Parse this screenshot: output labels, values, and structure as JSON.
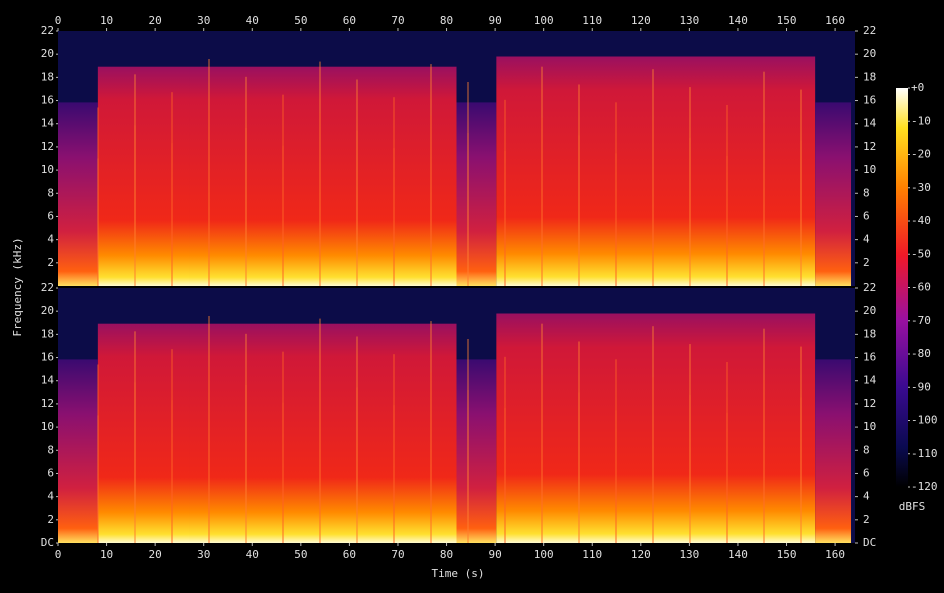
{
  "chart_data": {
    "type": "spectrogram",
    "x_label": "Time (s)",
    "y_label": "Frequency (kHz)",
    "xlim": [
      0,
      164.1
    ],
    "xticks": [
      0,
      10,
      20,
      30,
      40,
      50,
      60,
      70,
      80,
      90,
      100,
      110,
      120,
      130,
      140,
      150,
      160
    ],
    "channels": [
      {
        "ylim": [
          0,
          22
        ],
        "yticks": [
          2,
          4,
          6,
          8,
          10,
          12,
          14,
          16,
          18,
          20,
          22
        ]
      },
      {
        "ylim": [
          0,
          22
        ],
        "yticks": [
          {
            "value": 0,
            "label": "DC"
          },
          2,
          4,
          6,
          8,
          10,
          12,
          14,
          16,
          18,
          20,
          22
        ]
      }
    ],
    "colorbar": {
      "label": "dBFS",
      "lim": [
        -120,
        0
      ],
      "ticks": [
        {
          "value": 0,
          "label": "+0"
        },
        -10,
        -20,
        -30,
        -40,
        -50,
        -60,
        -70,
        -80,
        -90,
        -100,
        -110,
        -120
      ]
    }
  }
}
